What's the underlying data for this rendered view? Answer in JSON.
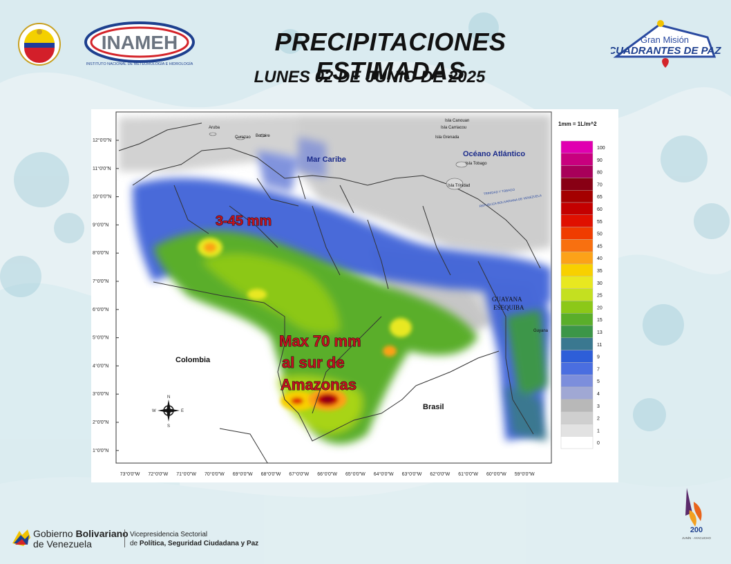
{
  "header": {
    "title": "PRECIPITACIONES ESTIMADAS",
    "subtitle": "LUNES 02 DE JUNIO DE 2025",
    "inameh_logo_text": "INAMEH",
    "inameh_logo_caption": "INSTITUTO NACIONAL DE METEOROLOGÍA E HIDROLOGÍA",
    "mision_logo_line1": "Gran Misión",
    "mision_logo_line2": "CUADRANTES DE PAZ"
  },
  "map": {
    "unit_note": "1mm = 1L/m^2",
    "annotations": {
      "north_range": "3-45 mm",
      "south_max_line1": "Max 70 mm",
      "south_max_line2": "al sur de",
      "south_max_line3": "Amazonas"
    },
    "place_labels": {
      "mar_caribe": "Mar Caribe",
      "oceano": "Océano Atlántico",
      "colombia": "Colombia",
      "brasil": "Brasil",
      "guayana1": "GUAYANA",
      "guayana2": "ESEQUIBA",
      "guyana": "Guyana",
      "aruba": "Aruba",
      "curazao": "Curazao",
      "bonaire": "Bonaire",
      "canouan": "Isla Canouan",
      "carriacou": "Isla Carriacou",
      "grenada": "Isla Grenada",
      "tobago": "Isla Tobago",
      "trinidad": "Isla Trinidad",
      "tt_label": "TRINIDAD Y TOBAGO",
      "rbv_label": "REPUBLICA BOLIVARIANA DE VENEZUELA"
    },
    "lat_labels": [
      "12°0'0\"N",
      "11°0'0\"N",
      "10°0'0\"N",
      "9°0'0\"N",
      "8°0'0\"N",
      "7°0'0\"N",
      "6°0'0\"N",
      "5°0'0\"N",
      "4°0'0\"N",
      "3°0'0\"N",
      "2°0'0\"N",
      "1°0'0\"N"
    ],
    "lon_labels": [
      "73°0'0\"W",
      "72°0'0\"W",
      "71°0'0\"W",
      "70°0'0\"W",
      "69°0'0\"W",
      "68°0'0\"W",
      "67°0'0\"W",
      "66°0'0\"W",
      "65°0'0\"W",
      "64°0'0\"W",
      "63°0'0\"W",
      "62°0'0\"W",
      "61°0'0\"W",
      "60°0'0\"W",
      "59°0'0\"W"
    ],
    "compass": {
      "n": "N",
      "s": "S",
      "e": "E",
      "w": "W"
    },
    "legend": [
      {
        "label": "100",
        "color": "#e000b0"
      },
      {
        "label": "90",
        "color": "#c8007e"
      },
      {
        "label": "80",
        "color": "#a8005a"
      },
      {
        "label": "70",
        "color": "#880014"
      },
      {
        "label": "65",
        "color": "#a40000"
      },
      {
        "label": "60",
        "color": "#c40000"
      },
      {
        "label": "55",
        "color": "#e01000"
      },
      {
        "label": "50",
        "color": "#f03c00"
      },
      {
        "label": "45",
        "color": "#f87010"
      },
      {
        "label": "40",
        "color": "#fca218"
      },
      {
        "label": "35",
        "color": "#f8d000"
      },
      {
        "label": "30",
        "color": "#e8e820"
      },
      {
        "label": "25",
        "color": "#c4e020"
      },
      {
        "label": "20",
        "color": "#8cc818"
      },
      {
        "label": "15",
        "color": "#5aae2a"
      },
      {
        "label": "13",
        "color": "#3c9648"
      },
      {
        "label": "11",
        "color": "#3a7890"
      },
      {
        "label": "9",
        "color": "#2e5ed8"
      },
      {
        "label": "7",
        "color": "#4a6ee0"
      },
      {
        "label": "5",
        "color": "#7c8edc"
      },
      {
        "label": "4",
        "color": "#a0a8d4"
      },
      {
        "label": "3",
        "color": "#b8b8b8"
      },
      {
        "label": "2",
        "color": "#cfcfcf"
      },
      {
        "label": "1",
        "color": "#e2e2e2"
      },
      {
        "label": "0",
        "color": "#ffffff"
      }
    ]
  },
  "footer": {
    "gob_line1a": "Gobierno ",
    "gob_line1b": "Bolivariano",
    "gob_line2": "de Venezuela",
    "vice_line1": "Vicepresidencia Sectorial",
    "vice_line2a": "de ",
    "vice_line2b": "Política, Seguridad Ciudadana y Paz",
    "emblem_text1": "200",
    "emblem_text2": "JUNÍN · AYACUCHO"
  }
}
